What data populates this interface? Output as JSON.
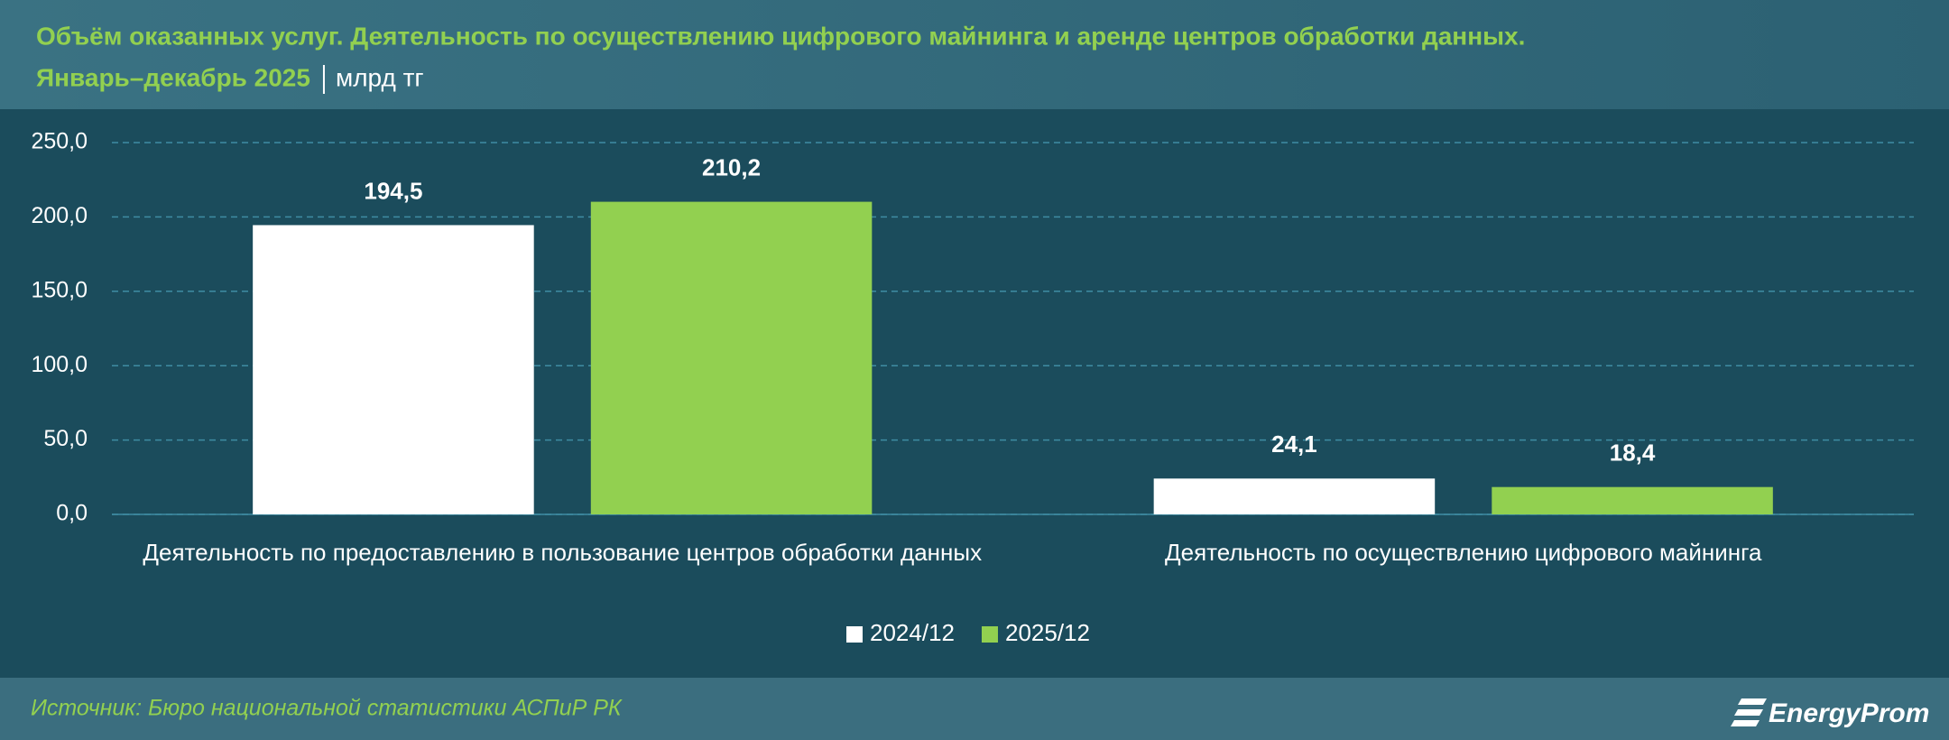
{
  "chart_data": {
    "type": "bar",
    "title": "Объём оказанных услуг. Деятельность по осуществлению цифрового майнинга и аренде центров обработки данных.",
    "subtitle": "Январь–декабрь 2025",
    "units": "млрд тг",
    "categories": [
      "Деятельность по предоставлению в пользование центров обработки данных",
      "Деятельность по осуществлению цифрового майнинга"
    ],
    "series": [
      {
        "name": "2024/12",
        "color": "#ffffff",
        "values": [
          194.5,
          24.1
        ],
        "value_labels": [
          "194,5",
          "24,1"
        ]
      },
      {
        "name": "2025/12",
        "color": "#92d050",
        "values": [
          210.2,
          18.4
        ],
        "value_labels": [
          "210,2",
          "18,4"
        ]
      }
    ],
    "ylim": [
      0,
      250
    ],
    "yticks": [
      {
        "value": 0,
        "label": "0,0"
      },
      {
        "value": 50,
        "label": "50,0"
      },
      {
        "value": 100,
        "label": "100,0"
      },
      {
        "value": 150,
        "label": "150,0"
      },
      {
        "value": 200,
        "label": "200,0"
      },
      {
        "value": 250,
        "label": "250,0"
      }
    ],
    "grid": true,
    "legend": "bottom",
    "source": "Источник: Бюро национальной статистики АСПиР РК",
    "brand": "EnergyProm"
  }
}
